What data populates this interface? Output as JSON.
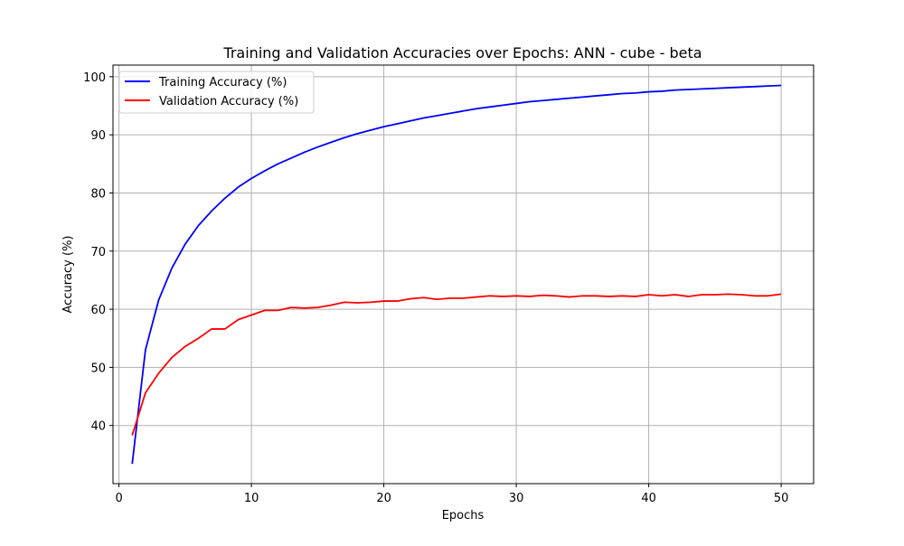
{
  "chart_data": {
    "type": "line",
    "title": "Training and Validation Accuracies over Epochs: ANN - cube - beta",
    "xlabel": "Epochs",
    "ylabel": "Accuracy (%)",
    "xlim": [
      -0.45,
      52.45
    ],
    "ylim": [
      30.0,
      102.0
    ],
    "xticks": [
      0,
      10,
      20,
      30,
      40,
      50
    ],
    "yticks": [
      40,
      50,
      60,
      70,
      80,
      90,
      100
    ],
    "grid": true,
    "legend_position": "upper-left",
    "x": [
      1,
      2,
      3,
      4,
      5,
      6,
      7,
      8,
      9,
      10,
      11,
      12,
      13,
      14,
      15,
      16,
      17,
      18,
      19,
      20,
      21,
      22,
      23,
      24,
      25,
      26,
      27,
      28,
      29,
      30,
      31,
      32,
      33,
      34,
      35,
      36,
      37,
      38,
      39,
      40,
      41,
      42,
      43,
      44,
      45,
      46,
      47,
      48,
      49,
      50
    ],
    "series": [
      {
        "name": "Training Accuracy (%)",
        "color": "#0000ff",
        "values": [
          33.4,
          53.0,
          61.6,
          67.1,
          71.2,
          74.4,
          76.9,
          79.1,
          81.0,
          82.5,
          83.8,
          85.0,
          86.0,
          87.0,
          87.9,
          88.7,
          89.5,
          90.2,
          90.8,
          91.4,
          91.9,
          92.4,
          92.9,
          93.3,
          93.7,
          94.1,
          94.5,
          94.8,
          95.1,
          95.4,
          95.7,
          95.9,
          96.1,
          96.3,
          96.5,
          96.7,
          96.9,
          97.1,
          97.2,
          97.4,
          97.5,
          97.7,
          97.8,
          97.9,
          98.0,
          98.1,
          98.2,
          98.3,
          98.4,
          98.5
        ]
      },
      {
        "name": "Validation Accuracy (%)",
        "color": "#ff0000",
        "values": [
          38.3,
          45.6,
          49.0,
          51.7,
          53.6,
          55.0,
          56.6,
          56.6,
          58.2,
          59.0,
          59.8,
          59.8,
          60.3,
          60.2,
          60.3,
          60.7,
          61.2,
          61.1,
          61.2,
          61.4,
          61.4,
          61.8,
          62.0,
          61.7,
          61.9,
          61.9,
          62.1,
          62.3,
          62.2,
          62.3,
          62.2,
          62.4,
          62.3,
          62.1,
          62.3,
          62.3,
          62.2,
          62.3,
          62.2,
          62.5,
          62.3,
          62.5,
          62.2,
          62.5,
          62.5,
          62.6,
          62.5,
          62.3,
          62.3,
          62.6
        ]
      }
    ]
  }
}
